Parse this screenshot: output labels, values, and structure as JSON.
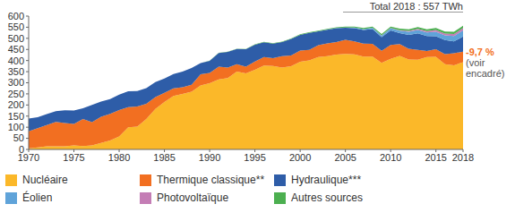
{
  "chart_data": {
    "type": "area",
    "title": "Total 2018 : 557 TWh",
    "stacked": true,
    "grid": false,
    "legend": "bottom",
    "annotations": [
      "-9,7 %",
      "(voir encadré)"
    ],
    "x": [
      1970,
      1971,
      1972,
      1973,
      1974,
      1975,
      1976,
      1977,
      1978,
      1979,
      1980,
      1981,
      1982,
      1983,
      1984,
      1985,
      1986,
      1987,
      1988,
      1989,
      1990,
      1991,
      1992,
      1993,
      1994,
      1995,
      1996,
      1997,
      1998,
      1999,
      2000,
      2001,
      2002,
      2003,
      2004,
      2005,
      2006,
      2007,
      2008,
      2009,
      2010,
      2011,
      2012,
      2013,
      2014,
      2015,
      2016,
      2017,
      2018
    ],
    "xlim": [
      1970,
      2018
    ],
    "xticks": [
      1970,
      1975,
      1980,
      1985,
      1990,
      1995,
      2000,
      2005,
      2010,
      2015,
      2018
    ],
    "ylim": [
      0,
      600
    ],
    "yticks": [
      0,
      50,
      100,
      150,
      200,
      250,
      300,
      350,
      400,
      450,
      500,
      550,
      600
    ],
    "series": [
      {
        "name": "Nucléaire",
        "color": "#fbb829",
        "values": [
          5,
          9,
          14,
          14,
          14,
          18,
          15,
          18,
          29,
          40,
          58,
          100,
          103,
          137,
          182,
          213,
          241,
          250,
          260,
          288,
          298,
          315,
          321,
          350,
          342,
          358,
          378,
          376,
          368,
          375,
          395,
          401,
          416,
          420,
          427,
          430,
          428,
          418,
          418,
          390,
          408,
          421,
          405,
          404,
          416,
          417,
          384,
          379,
          393
        ]
      },
      {
        "name": "Thermique classique**",
        "color": "#f26f21",
        "values": [
          77,
          87,
          96,
          110,
          105,
          97,
          122,
          105,
          118,
          120,
          119,
          90,
          90,
          68,
          54,
          42,
          34,
          30,
          31,
          50,
          46,
          57,
          47,
          34,
          30,
          38,
          38,
          35,
          52,
          48,
          50,
          47,
          53,
          57,
          56,
          63,
          58,
          58,
          57,
          54,
          62,
          53,
          48,
          44,
          27,
          34,
          45,
          54,
          47
        ]
      },
      {
        "name": "Hydraulique***",
        "color": "#2e5da8",
        "values": [
          57,
          49,
          49,
          48,
          57,
          60,
          48,
          77,
          68,
          67,
          70,
          72,
          70,
          71,
          67,
          64,
          64,
          70,
          75,
          51,
          55,
          62,
          71,
          68,
          79,
          75,
          66,
          65,
          63,
          74,
          70,
          77,
          63,
          62,
          63,
          55,
          60,
          62,
          67,
          61,
          66,
          49,
          62,
          74,
          67,
          58,
          63,
          53,
          68
        ]
      },
      {
        "name": "Éolien",
        "color": "#5fa3d9",
        "values": [
          0,
          0,
          0,
          0,
          0,
          0,
          0,
          0,
          0,
          0,
          0,
          0,
          0,
          0,
          0,
          0,
          0,
          0,
          0,
          0,
          0,
          0,
          0,
          0,
          0,
          0,
          0,
          0,
          0,
          0,
          0,
          0,
          0,
          0.4,
          0.6,
          1,
          2.2,
          4,
          5.7,
          7.9,
          9.9,
          12,
          15,
          16,
          17,
          21,
          21,
          24,
          28
        ]
      },
      {
        "name": "Photovoltaïque",
        "color": "#c47db5",
        "values": [
          0,
          0,
          0,
          0,
          0,
          0,
          0,
          0,
          0,
          0,
          0,
          0,
          0,
          0,
          0,
          0,
          0,
          0,
          0,
          0,
          0,
          0,
          0,
          0,
          0,
          0,
          0,
          0,
          0,
          0,
          0,
          0,
          0,
          0,
          0,
          0,
          0,
          0,
          0,
          0.2,
          0.6,
          2,
          4,
          4.6,
          5.9,
          7.3,
          8.2,
          9.2,
          10.2
        ]
      },
      {
        "name": "Autres sources",
        "color": "#4caf50",
        "values": [
          0,
          0,
          0,
          0,
          0,
          0,
          0,
          0,
          0,
          0,
          0,
          0,
          0,
          0,
          0,
          0,
          0,
          0,
          0,
          0,
          1,
          1,
          1,
          1,
          1,
          2,
          2,
          2,
          2,
          2,
          3,
          3,
          3,
          3,
          3,
          4,
          4,
          5,
          5,
          6,
          6,
          7,
          7,
          8,
          8,
          9,
          9,
          10,
          11
        ]
      }
    ]
  }
}
